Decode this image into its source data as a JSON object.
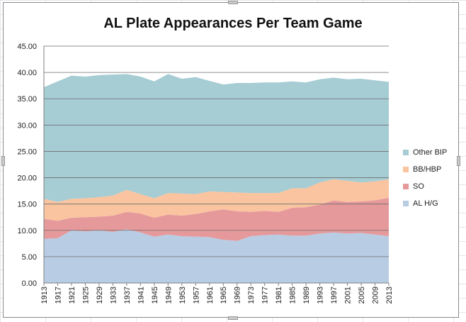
{
  "chart_data": {
    "type": "area",
    "stacked": true,
    "title": "AL Plate Appearances Per Team Game",
    "xlabel": "",
    "ylabel": "",
    "ylim": [
      0,
      45
    ],
    "yticks": [
      "0.00",
      "5.00",
      "10.00",
      "15.00",
      "20.00",
      "25.00",
      "30.00",
      "35.00",
      "40.00",
      "45.00"
    ],
    "xticks": [
      "1913",
      "1917",
      "1921",
      "1925",
      "1929",
      "1933",
      "1937",
      "1941",
      "1945",
      "1949",
      "1953",
      "1957",
      "1961",
      "1965",
      "1969",
      "1973",
      "1977",
      "1981",
      "1985",
      "1989",
      "1993",
      "1997",
      "2001",
      "2005",
      "2009",
      "2013"
    ],
    "x": [
      1913,
      1917,
      1921,
      1925,
      1929,
      1933,
      1937,
      1941,
      1945,
      1949,
      1953,
      1957,
      1961,
      1965,
      1969,
      1973,
      1977,
      1981,
      1985,
      1989,
      1993,
      1997,
      2001,
      2005,
      2009,
      2013
    ],
    "grid": true,
    "legend_position": "right",
    "series": [
      {
        "name": "AL H/G",
        "color": "#b8cce4",
        "values": [
          8.4,
          8.5,
          10.0,
          9.8,
          10.0,
          9.7,
          10.2,
          9.6,
          8.8,
          9.2,
          8.9,
          8.8,
          8.7,
          8.2,
          8.0,
          8.9,
          9.1,
          9.2,
          9.0,
          9.0,
          9.4,
          9.6,
          9.4,
          9.5,
          9.2,
          8.9
        ]
      },
      {
        "name": "SO",
        "color": "#e6999b",
        "values": [
          3.8,
          3.3,
          2.4,
          2.7,
          2.6,
          3.1,
          3.3,
          3.6,
          3.6,
          3.8,
          3.9,
          4.3,
          4.9,
          5.8,
          5.6,
          4.6,
          4.6,
          4.3,
          5.3,
          5.4,
          5.5,
          6.1,
          6.0,
          6.0,
          6.5,
          7.3
        ]
      },
      {
        "name": "BB/HBP",
        "color": "#f9c49f",
        "values": [
          3.8,
          3.6,
          3.6,
          3.6,
          3.7,
          3.8,
          4.2,
          3.7,
          3.7,
          4.1,
          4.2,
          3.8,
          3.8,
          3.3,
          3.6,
          3.6,
          3.4,
          3.6,
          3.7,
          3.6,
          4.2,
          4.0,
          4.0,
          3.6,
          3.6,
          3.5
        ]
      },
      {
        "name": "Other BIP",
        "color": "#a6ccd4",
        "values": [
          21.2,
          22.9,
          23.4,
          23.1,
          23.2,
          23.0,
          22.0,
          22.3,
          22.2,
          22.6,
          21.8,
          22.2,
          21.0,
          20.4,
          20.8,
          20.9,
          21.0,
          21.0,
          20.3,
          20.1,
          19.6,
          19.3,
          19.3,
          19.7,
          19.2,
          18.5
        ]
      }
    ]
  }
}
